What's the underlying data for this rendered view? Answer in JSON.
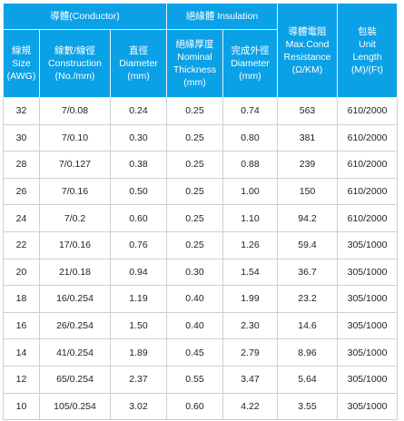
{
  "header": {
    "conductor_group": "導體(Conductor)",
    "insulation_group": "絕緣體 Insulation",
    "resistance": [
      "導體電阻",
      "Max.Cond",
      "Resistance",
      "(Ω/KM)"
    ],
    "package": [
      "包裝",
      "Unit",
      "Length",
      "(M)/(Ft)"
    ],
    "size": [
      "線規",
      "Size",
      "(AWG)"
    ],
    "construction": [
      "線數/線徑",
      "Construction",
      "(No./mm)"
    ],
    "diameter": [
      "直徑",
      "Diameter",
      "(mm)"
    ],
    "thickness": [
      "絕緣厚度",
      "Nominal",
      "Thickness",
      "(mm)"
    ],
    "outer_diameter": [
      "完成外徑",
      "Diameter",
      "(mm)"
    ]
  },
  "rows": [
    {
      "size": "32",
      "construction": "7/0.08",
      "diameter": "0.24",
      "thickness": "0.25",
      "outer": "0.74",
      "resistance": "563",
      "package": "610/2000"
    },
    {
      "size": "30",
      "construction": "7/0.10",
      "diameter": "0.30",
      "thickness": "0.25",
      "outer": "0.80",
      "resistance": "381",
      "package": "610/2000"
    },
    {
      "size": "28",
      "construction": "7/0.127",
      "diameter": "0.38",
      "thickness": "0.25",
      "outer": "0.88",
      "resistance": "239",
      "package": "610/2000"
    },
    {
      "size": "26",
      "construction": "7/0.16",
      "diameter": "0.50",
      "thickness": "0.25",
      "outer": "1.00",
      "resistance": "150",
      "package": "610/2000"
    },
    {
      "size": "24",
      "construction": "7/0.2",
      "diameter": "0.60",
      "thickness": "0.25",
      "outer": "1.10",
      "resistance": "94.2",
      "package": "610/2000"
    },
    {
      "size": "22",
      "construction": "17/0.16",
      "diameter": "0.76",
      "thickness": "0.25",
      "outer": "1.26",
      "resistance": "59.4",
      "package": "305/1000"
    },
    {
      "size": "20",
      "construction": "21/0.18",
      "diameter": "0.94",
      "thickness": "0.30",
      "outer": "1.54",
      "resistance": "36.7",
      "package": "305/1000"
    },
    {
      "size": "18",
      "construction": "16/0.254",
      "diameter": "1.19",
      "thickness": "0.40",
      "outer": "1.99",
      "resistance": "23.2",
      "package": "305/1000"
    },
    {
      "size": "16",
      "construction": "26/0.254",
      "diameter": "1.50",
      "thickness": "0.40",
      "outer": "2.30",
      "resistance": "14.6",
      "package": "305/1000"
    },
    {
      "size": "14",
      "construction": "41/0.254",
      "diameter": "1.89",
      "thickness": "0.45",
      "outer": "2.79",
      "resistance": "8.96",
      "package": "305/1000"
    },
    {
      "size": "12",
      "construction": "65/0.254",
      "diameter": "2.37",
      "thickness": "0.55",
      "outer": "3.47",
      "resistance": "5.64",
      "package": "305/1000"
    },
    {
      "size": "10",
      "construction": "105/0.254",
      "diameter": "3.02",
      "thickness": "0.60",
      "outer": "4.22",
      "resistance": "3.55",
      "package": "305/1000"
    }
  ]
}
